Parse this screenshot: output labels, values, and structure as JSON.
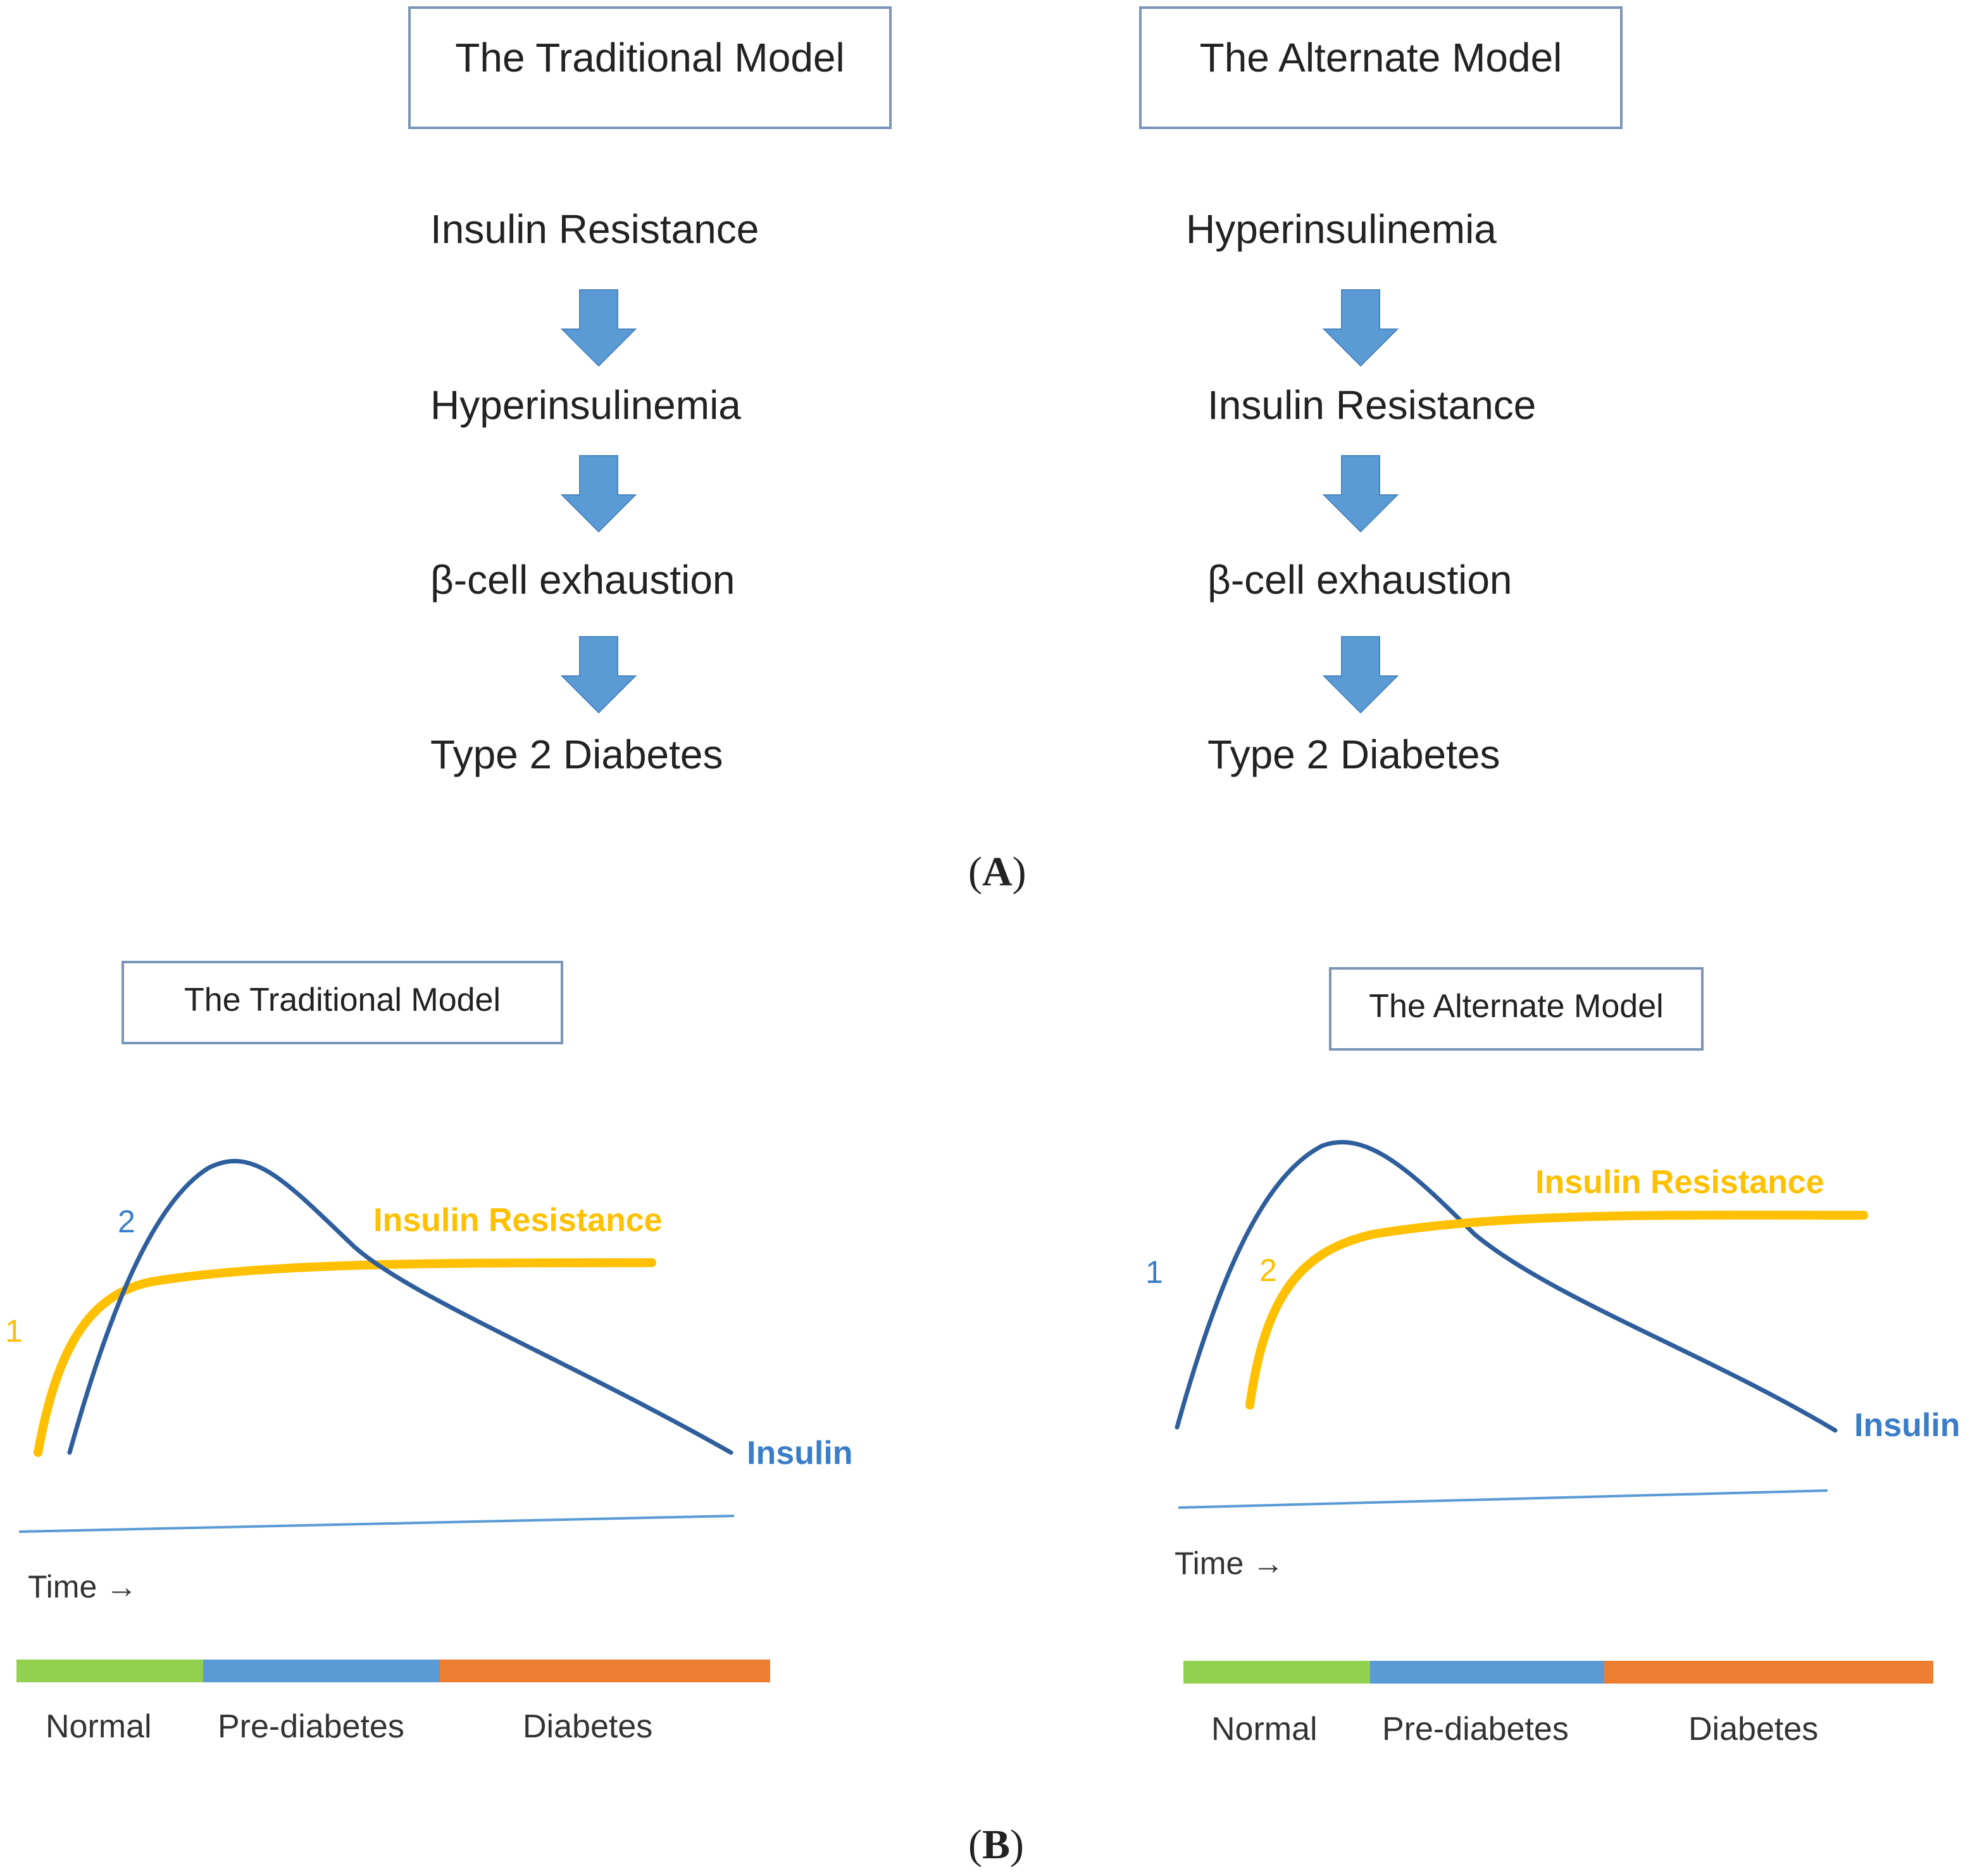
{
  "panel_a": {
    "label": "A",
    "traditional": {
      "title": "The Traditional Model",
      "steps": [
        "Insulin Resistance",
        "Hyperinsulinemia",
        "β-cell exhaustion",
        "Type 2 Diabetes"
      ]
    },
    "alternate": {
      "title": "The Alternate Model",
      "steps": [
        "Hyperinsulinemia",
        "Insulin Resistance",
        "β-cell exhaustion",
        "Type 2 Diabetes"
      ]
    },
    "arrow_color": "#5b9bd5"
  },
  "panel_b": {
    "label": "B",
    "traditional": {
      "title": "The Traditional Model",
      "insulin_label": "Insulin",
      "resistance_label": "Insulin Resistance",
      "insulin_order": "2",
      "resistance_order": "1",
      "time_label": "Time →",
      "stages": [
        "Normal",
        "Pre-diabetes",
        "Diabetes"
      ]
    },
    "alternate": {
      "title": "The Alternate Model",
      "insulin_label": "Insulin",
      "resistance_label": "Insulin Resistance",
      "insulin_order": "1",
      "resistance_order": "2",
      "time_label": "Time →",
      "stages": [
        "Normal",
        "Pre-diabetes",
        "Diabetes"
      ]
    },
    "colors": {
      "insulin": "#2e5e9c",
      "insulin_label": "#3a7dc9",
      "resistance": "#ffc000",
      "time_axis": "#5b9bd5",
      "normal": "#92d050",
      "pre_diabetes": "#5b9bd5",
      "diabetes": "#ed7d31"
    }
  }
}
